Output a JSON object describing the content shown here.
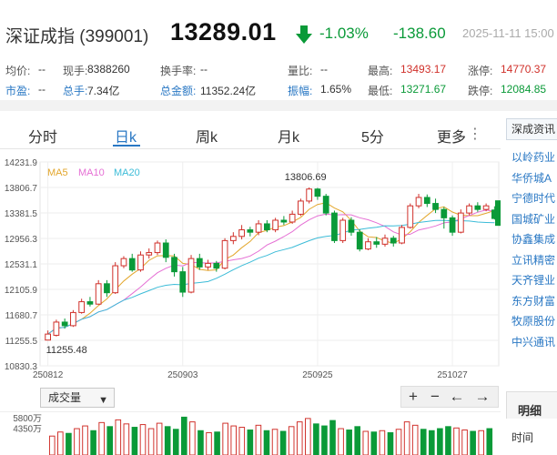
{
  "header": {
    "name": "深证成指 (399001)",
    "price": "13289.01",
    "change_pct": "-1.03%",
    "change_abs": "-138.60",
    "datetime": "2025-11-11 15:00"
  },
  "colors": {
    "up": "#d0302a",
    "down": "#0a9a38",
    "accent": "#2a78c4",
    "ma5": "#e3a72d",
    "ma10": "#e56fd4",
    "ma20": "#3cbcd8"
  },
  "stats": [
    {
      "label": "均价:",
      "value": "--",
      "label_color": "",
      "value_color": ""
    },
    {
      "label": "现手:",
      "value": "8388260",
      "label_color": "",
      "value_color": ""
    },
    {
      "label": "换手率:",
      "value": "--",
      "label_color": "",
      "value_color": ""
    },
    {
      "label": "量比:",
      "value": "--",
      "label_color": "",
      "value_color": ""
    },
    {
      "label": "最高:",
      "value": "13493.17",
      "label_color": "",
      "value_color": "red"
    },
    {
      "label": "涨停:",
      "value": "14770.37",
      "label_color": "",
      "value_color": "red"
    },
    {
      "label": "市盈:",
      "value": "--",
      "label_color": "blue",
      "value_color": ""
    },
    {
      "label": "总手:",
      "value": "7.34亿",
      "label_color": "blue",
      "value_color": ""
    },
    {
      "label": "总金额:",
      "value": "11352.24亿",
      "label_color": "blue",
      "value_color": ""
    },
    {
      "label": "振幅:",
      "value": "1.65%",
      "label_color": "blue",
      "value_color": ""
    },
    {
      "label": "最低:",
      "value": "13271.67",
      "label_color": "",
      "value_color": "green"
    },
    {
      "label": "跌停:",
      "value": "12084.85",
      "label_color": "",
      "value_color": "green"
    }
  ],
  "tabs": [
    {
      "label": "分时",
      "active": false
    },
    {
      "label": "日k",
      "active": true
    },
    {
      "label": "周k",
      "active": false
    },
    {
      "label": "月k",
      "active": false
    },
    {
      "label": "5分",
      "active": false
    },
    {
      "label": "更多",
      "active": false
    }
  ],
  "more_icon": "vertical-ellipsis-icon",
  "chart_data": {
    "type": "candlestick",
    "legend": [
      {
        "name": "MA5",
        "color": "#e3a72d"
      },
      {
        "name": "MA10",
        "color": "#e56fd4"
      },
      {
        "name": "MA20",
        "color": "#3cbcd8"
      }
    ],
    "y_ticks": [
      "14231.9",
      "13806.7",
      "13381.5",
      "12956.3",
      "12531.1",
      "12105.9",
      "11680.7",
      "11255.5",
      "10830.3"
    ],
    "ylim": [
      10830.3,
      14231.9
    ],
    "x_ticks": [
      {
        "label": "250812",
        "index": 0
      },
      {
        "label": "250903",
        "index": 16
      },
      {
        "label": "250925",
        "index": 32
      },
      {
        "label": "251027",
        "index": 48
      }
    ],
    "annotations": {
      "high": "13806.69",
      "low": "11255.48"
    },
    "candles": [
      {
        "o": 11260,
        "c": 11360,
        "h": 11420,
        "l": 11255
      },
      {
        "o": 11340,
        "c": 11560,
        "h": 11600,
        "l": 11320
      },
      {
        "o": 11560,
        "c": 11500,
        "h": 11620,
        "l": 11450
      },
      {
        "o": 11500,
        "c": 11720,
        "h": 11760,
        "l": 11480
      },
      {
        "o": 11720,
        "c": 11900,
        "h": 11950,
        "l": 11700
      },
      {
        "o": 11900,
        "c": 11860,
        "h": 11980,
        "l": 11820
      },
      {
        "o": 11860,
        "c": 12200,
        "h": 12260,
        "l": 11850
      },
      {
        "o": 12200,
        "c": 12050,
        "h": 12260,
        "l": 11980
      },
      {
        "o": 12050,
        "c": 12500,
        "h": 12560,
        "l": 12030
      },
      {
        "o": 12500,
        "c": 12620,
        "h": 12660,
        "l": 12460
      },
      {
        "o": 12620,
        "c": 12430,
        "h": 12700,
        "l": 12400
      },
      {
        "o": 12430,
        "c": 12680,
        "h": 12740,
        "l": 12400
      },
      {
        "o": 12680,
        "c": 12720,
        "h": 12790,
        "l": 12620
      },
      {
        "o": 12720,
        "c": 12880,
        "h": 12920,
        "l": 12680
      },
      {
        "o": 12880,
        "c": 12640,
        "h": 12940,
        "l": 12560
      },
      {
        "o": 12640,
        "c": 12400,
        "h": 12700,
        "l": 12320
      },
      {
        "o": 12400,
        "c": 12060,
        "h": 12480,
        "l": 11980
      },
      {
        "o": 12060,
        "c": 12620,
        "h": 12680,
        "l": 12040
      },
      {
        "o": 12620,
        "c": 12480,
        "h": 12700,
        "l": 12430
      },
      {
        "o": 12480,
        "c": 12540,
        "h": 12600,
        "l": 12430
      },
      {
        "o": 12540,
        "c": 12460,
        "h": 12580,
        "l": 12400
      },
      {
        "o": 12460,
        "c": 12920,
        "h": 12960,
        "l": 12440
      },
      {
        "o": 12920,
        "c": 12990,
        "h": 13060,
        "l": 12860
      },
      {
        "o": 12990,
        "c": 13100,
        "h": 13180,
        "l": 12940
      },
      {
        "o": 13100,
        "c": 13060,
        "h": 13150,
        "l": 12990
      },
      {
        "o": 13060,
        "c": 13200,
        "h": 13260,
        "l": 13010
      },
      {
        "o": 13200,
        "c": 13100,
        "h": 13260,
        "l": 13060
      },
      {
        "o": 13100,
        "c": 13260,
        "h": 13300,
        "l": 13060
      },
      {
        "o": 13260,
        "c": 13230,
        "h": 13330,
        "l": 13180
      },
      {
        "o": 13230,
        "c": 13360,
        "h": 13420,
        "l": 13200
      },
      {
        "o": 13360,
        "c": 13580,
        "h": 13620,
        "l": 13330
      },
      {
        "o": 13580,
        "c": 13780,
        "h": 13806,
        "l": 13540
      },
      {
        "o": 13780,
        "c": 13660,
        "h": 13800,
        "l": 13600
      },
      {
        "o": 13660,
        "c": 13380,
        "h": 13700,
        "l": 13340
      },
      {
        "o": 13380,
        "c": 12920,
        "h": 13420,
        "l": 12880
      },
      {
        "o": 12920,
        "c": 13260,
        "h": 13300,
        "l": 12880
      },
      {
        "o": 13260,
        "c": 13060,
        "h": 13310,
        "l": 13000
      },
      {
        "o": 13060,
        "c": 12780,
        "h": 13110,
        "l": 12740
      },
      {
        "o": 12780,
        "c": 12900,
        "h": 12960,
        "l": 12760
      },
      {
        "o": 12900,
        "c": 12860,
        "h": 12980,
        "l": 12800
      },
      {
        "o": 12860,
        "c": 12960,
        "h": 13020,
        "l": 12820
      },
      {
        "o": 12960,
        "c": 12880,
        "h": 13000,
        "l": 12820
      },
      {
        "o": 12880,
        "c": 13140,
        "h": 13180,
        "l": 12860
      },
      {
        "o": 13140,
        "c": 13500,
        "h": 13540,
        "l": 13120
      },
      {
        "o": 13500,
        "c": 13640,
        "h": 13700,
        "l": 13460
      },
      {
        "o": 13640,
        "c": 13540,
        "h": 13690,
        "l": 13480
      },
      {
        "o": 13540,
        "c": 13440,
        "h": 13620,
        "l": 13380
      },
      {
        "o": 13440,
        "c": 13300,
        "h": 13480,
        "l": 13120
      },
      {
        "o": 13300,
        "c": 13060,
        "h": 13340,
        "l": 13000
      },
      {
        "o": 13060,
        "c": 13380,
        "h": 13440,
        "l": 13040
      },
      {
        "o": 13380,
        "c": 13500,
        "h": 13540,
        "l": 13340
      },
      {
        "o": 13500,
        "c": 13440,
        "h": 13560,
        "l": 13400
      },
      {
        "o": 13440,
        "c": 13500,
        "h": 13540,
        "l": 13410
      },
      {
        "o": 13430,
        "c": 13289,
        "h": 13493,
        "l": 13271
      }
    ],
    "volumes": [
      2800,
      3400,
      3200,
      3900,
      4300,
      3600,
      4800,
      4200,
      5200,
      4600,
      4100,
      4500,
      3900,
      4700,
      4200,
      3800,
      5600,
      4900,
      3600,
      3300,
      3400,
      4700,
      4300,
      4100,
      3700,
      4400,
      3600,
      3800,
      3500,
      4200,
      4900,
      5400,
      4600,
      4300,
      5100,
      3900,
      3700,
      4200,
      3500,
      3400,
      3600,
      3300,
      3800,
      4900,
      4400,
      3800,
      3600,
      3900,
      4200,
      4000,
      3700,
      3500,
      3600,
      3900
    ]
  },
  "chart_controls": {
    "indicator_select": "成交量",
    "tools": [
      {
        "name": "zoom-in-icon",
        "glyph": "+"
      },
      {
        "name": "zoom-out-icon",
        "glyph": "−"
      },
      {
        "name": "pan-left-icon",
        "glyph": "←"
      },
      {
        "name": "pan-right-icon",
        "glyph": "→"
      }
    ]
  },
  "volume_axis": {
    "ticks": [
      "5800万",
      "4350万"
    ]
  },
  "sidebar": {
    "header": "深成资讯",
    "items": [
      "以岭药业",
      "华侨城A",
      "宁德时代",
      "国城矿业",
      "协鑫集成",
      "立讯精密",
      "天齐锂业",
      "东方财富",
      "牧原股份",
      "中兴通讯"
    ]
  },
  "sidebar2": {
    "tab": "明细",
    "label": "时间"
  }
}
